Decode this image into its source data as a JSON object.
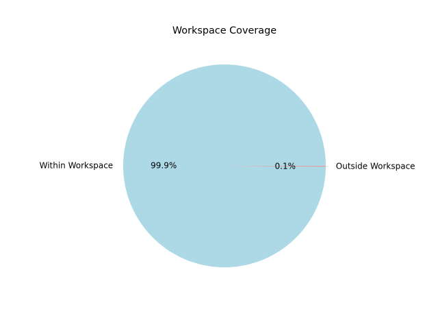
{
  "chart_data": {
    "type": "pie",
    "title": "Workspace Coverage",
    "slices": [
      {
        "label": "Within Workspace",
        "value": 99.9,
        "pct_label": "99.9%",
        "color": "#add8e6"
      },
      {
        "label": "Outside Workspace",
        "value": 0.1,
        "pct_label": "0.1%",
        "color": "#f08080"
      }
    ],
    "legend": "none"
  }
}
